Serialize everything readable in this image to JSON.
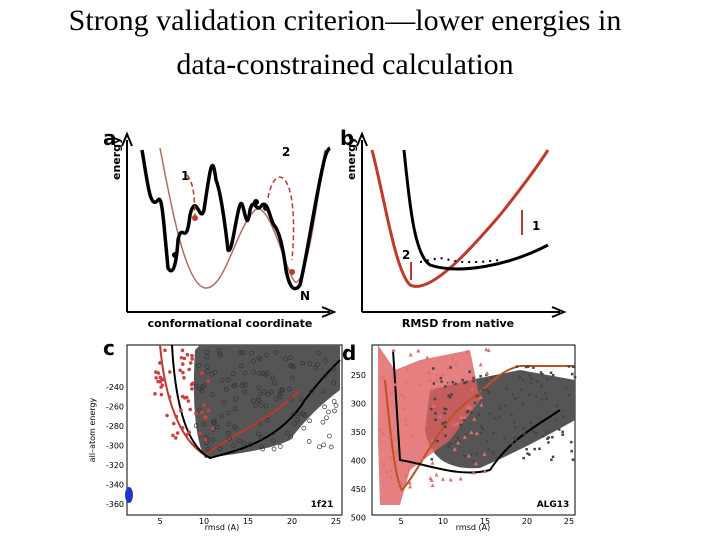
{
  "slide": {
    "title_lines": [
      "Strong validation criterion—lower energies in",
      "data-constrained calculation"
    ],
    "panel_a": {
      "label": "a",
      "y_label": "energy",
      "x_label": "conformational coordinate",
      "annotations": [
        "1",
        "2",
        "N"
      ]
    },
    "panel_b": {
      "label": "b",
      "y_label": "energy",
      "x_label": "RMSD from native",
      "annotations": [
        "2",
        "1"
      ]
    },
    "panel_c": {
      "label": "c",
      "y_label": "all–atom energy",
      "x_label": "rmsd (A)",
      "tag": "1f21",
      "yticks": [
        "-240",
        "-260",
        "-280",
        "-300",
        "-320",
        "-340",
        "-360"
      ],
      "xticks": [
        "5",
        "10",
        "15",
        "20",
        "25"
      ]
    },
    "panel_d": {
      "label": "d",
      "x_label": "rmsd (A)",
      "tag": "ALG13",
      "yticks": [
        "250",
        "300",
        "350",
        "400",
        "450",
        "500"
      ],
      "xticks": [
        "5",
        "10",
        "15",
        "20",
        "25"
      ]
    }
  }
}
